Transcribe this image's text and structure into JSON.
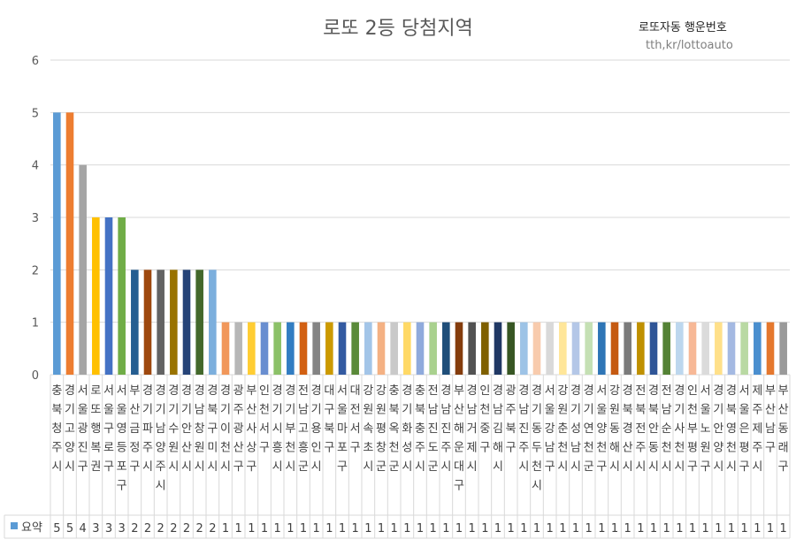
{
  "chart_data": {
    "type": "bar",
    "title": "로또 2등 당첨지역",
    "ylim": [
      0,
      6
    ],
    "yticks": [
      0,
      1,
      2,
      3,
      4,
      5,
      6
    ],
    "grid": true,
    "legend_position": "bottom-left",
    "series": [
      {
        "name": "요약",
        "color": "#5B9BD5"
      }
    ],
    "categories": [
      "충북청주시",
      "경기고양시",
      "서울광진구",
      "로또행복권",
      "서울구로구",
      "서울영등포구",
      "부산금정구",
      "경기파주시",
      "경기남양주시",
      "경기수원시",
      "경기안산시",
      "경남창원시",
      "경북구미시",
      "경기이천시",
      "광주광산구",
      "부산사상구",
      "인천서구",
      "경기시흥시",
      "경기부천시",
      "전남고흥군",
      "경기용인시",
      "대구북구",
      "서울마포구",
      "대전서구",
      "강원속초시",
      "강원평창군",
      "충북옥천군",
      "경기화성시",
      "충북충주시",
      "전남진도군",
      "경남진주시",
      "부산해운대구",
      "경남거제시",
      "인천중구",
      "경남김해시",
      "광주북구",
      "경남진주시",
      "경기동두천시",
      "서울강남구",
      "강원춘천시",
      "경기성남시",
      "경기연천군",
      "서울양천구",
      "강원동해시",
      "경북경산시",
      "전북전주시",
      "경북안동시",
      "전남순천시",
      "경기사천시",
      "인천부평구",
      "서울노원구",
      "경기안양시",
      "경북영천시",
      "서울은평구",
      "제주제주시",
      "부산남구",
      "부산동래구"
    ],
    "values": [
      5,
      5,
      4,
      3,
      3,
      3,
      2,
      2,
      2,
      2,
      2,
      2,
      2,
      1,
      1,
      1,
      1,
      1,
      1,
      1,
      1,
      1,
      1,
      1,
      1,
      1,
      1,
      1,
      1,
      1,
      1,
      1,
      1,
      1,
      1,
      1,
      1,
      1,
      1,
      1,
      1,
      1,
      1,
      1,
      1,
      1,
      1,
      1,
      1,
      1,
      1,
      1,
      1,
      1,
      1,
      1,
      1
    ],
    "colors": [
      "#5B9BD5",
      "#ED7D31",
      "#A5A5A5",
      "#FFC000",
      "#4472C4",
      "#70AD47",
      "#255E91",
      "#9E480E",
      "#636363",
      "#997300",
      "#264478",
      "#43682B",
      "#7CAFDD",
      "#F1975A",
      "#B7B7B7",
      "#FFCD33",
      "#698ED0",
      "#8CC168",
      "#327DC2",
      "#D26012",
      "#848484",
      "#CC9A00",
      "#335AA1",
      "#5A8A39",
      "#A3C5E8",
      "#F4B183",
      "#C9C9C9",
      "#FFD966",
      "#8FAADC",
      "#A9D18E",
      "#1F4E79",
      "#843C0C",
      "#525252",
      "#7F6000",
      "#203864",
      "#375623",
      "#9DC3E6",
      "#F8CBAD",
      "#D9D9D9",
      "#FFE699",
      "#B4C7E7",
      "#C5E0B4",
      "#2E75B6",
      "#C55A11",
      "#7B7B7B",
      "#BF9000",
      "#2F5597",
      "#548235",
      "#BDD7EE",
      "#F7B896",
      "#DBDBDB",
      "#FFE08A",
      "#A4B9E2",
      "#B9D9A3",
      "#4A8FCF",
      "#E5782E",
      "#9A9A9A"
    ]
  },
  "watermark": {
    "brand": "로또자동 행운번호",
    "site": "tth,kr/lottoauto"
  }
}
